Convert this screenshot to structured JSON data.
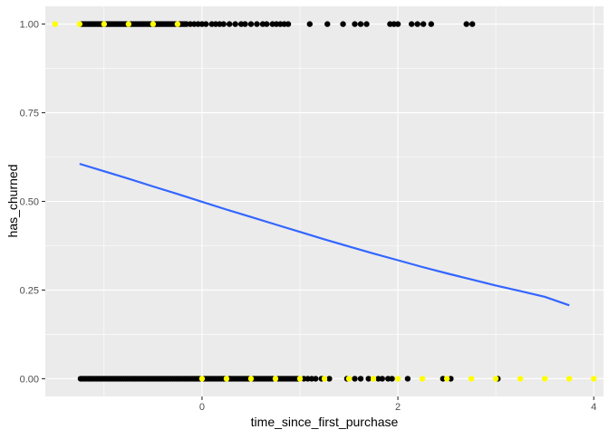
{
  "chart_data": {
    "type": "scatter",
    "title": "",
    "xlabel": "time_since_first_purchase",
    "ylabel": "has_churned",
    "xlim": [
      -1.6,
      4.1
    ],
    "ylim": [
      -0.05,
      1.05
    ],
    "x_ticks": [
      0,
      2,
      4
    ],
    "x_tick_labels": [
      "0",
      "2",
      "4"
    ],
    "x_minor_ticks": [
      -1,
      1,
      3
    ],
    "y_ticks": [
      0,
      0.25,
      0.5,
      0.75,
      1
    ],
    "y_tick_labels": [
      "0.00",
      "0.25",
      "0.50",
      "0.75",
      "1.00"
    ],
    "y_minor_ticks": [
      0.125,
      0.375,
      0.625,
      0.875
    ],
    "grid": true,
    "legend": "none",
    "colors": {
      "panel_background": "#ebebeb",
      "grid": "#ffffff",
      "observed_points": "#000000",
      "highlight_points": "#ffff00",
      "fit_line": "#3366ff"
    },
    "series": [
      {
        "type": "scatter",
        "color": "#000000",
        "points": [
          [
            -1.24,
            1
          ],
          [
            -1.22,
            1
          ],
          [
            -1.2,
            1
          ],
          [
            -1.18,
            1
          ],
          [
            -1.16,
            1
          ],
          [
            -1.14,
            1
          ],
          [
            -1.12,
            1
          ],
          [
            -1.1,
            1
          ],
          [
            -1.08,
            1
          ],
          [
            -1.06,
            1
          ],
          [
            -1.04,
            1
          ],
          [
            -1.02,
            1
          ],
          [
            -1.0,
            1
          ],
          [
            -0.98,
            1
          ],
          [
            -0.96,
            1
          ],
          [
            -0.94,
            1
          ],
          [
            -0.92,
            1
          ],
          [
            -0.9,
            1
          ],
          [
            -0.88,
            1
          ],
          [
            -0.86,
            1
          ],
          [
            -0.84,
            1
          ],
          [
            -0.82,
            1
          ],
          [
            -0.8,
            1
          ],
          [
            -0.78,
            1
          ],
          [
            -0.76,
            1
          ],
          [
            -0.74,
            1
          ],
          [
            -0.72,
            1
          ],
          [
            -0.7,
            1
          ],
          [
            -0.68,
            1
          ],
          [
            -0.66,
            1
          ],
          [
            -0.64,
            1
          ],
          [
            -0.62,
            1
          ],
          [
            -0.6,
            1
          ],
          [
            -0.58,
            1
          ],
          [
            -0.56,
            1
          ],
          [
            -0.54,
            1
          ],
          [
            -0.52,
            1
          ],
          [
            -0.5,
            1
          ],
          [
            -0.48,
            1
          ],
          [
            -0.46,
            1
          ],
          [
            -0.44,
            1
          ],
          [
            -0.42,
            1
          ],
          [
            -0.4,
            1
          ],
          [
            -0.38,
            1
          ],
          [
            -0.36,
            1
          ],
          [
            -0.34,
            1
          ],
          [
            -0.32,
            1
          ],
          [
            -0.3,
            1
          ],
          [
            -0.28,
            1
          ],
          [
            -0.26,
            1
          ],
          [
            -0.24,
            1
          ],
          [
            -0.22,
            1
          ],
          [
            -0.2,
            1
          ],
          [
            -0.18,
            1
          ],
          [
            -0.16,
            1
          ],
          [
            -0.12,
            1
          ],
          [
            -0.08,
            1
          ],
          [
            -0.04,
            1
          ],
          [
            0.0,
            1
          ],
          [
            0.04,
            1
          ],
          [
            0.1,
            1
          ],
          [
            0.14,
            1
          ],
          [
            0.18,
            1
          ],
          [
            0.22,
            1
          ],
          [
            0.28,
            1
          ],
          [
            0.34,
            1
          ],
          [
            0.4,
            1
          ],
          [
            0.44,
            1
          ],
          [
            0.5,
            1
          ],
          [
            0.56,
            1
          ],
          [
            0.62,
            1
          ],
          [
            0.66,
            1
          ],
          [
            0.72,
            1
          ],
          [
            0.76,
            1
          ],
          [
            0.8,
            1
          ],
          [
            0.84,
            1
          ],
          [
            0.88,
            1
          ],
          [
            1.1,
            1
          ],
          [
            1.28,
            1
          ],
          [
            1.44,
            1
          ],
          [
            1.56,
            1
          ],
          [
            1.62,
            1
          ],
          [
            1.68,
            1
          ],
          [
            1.92,
            1
          ],
          [
            1.96,
            1
          ],
          [
            2.0,
            1
          ],
          [
            2.14,
            1
          ],
          [
            2.2,
            1
          ],
          [
            2.26,
            1
          ],
          [
            2.34,
            1
          ],
          [
            2.7,
            1
          ],
          [
            2.76,
            1
          ],
          [
            -1.24,
            0
          ],
          [
            -1.22,
            0
          ],
          [
            -1.2,
            0
          ],
          [
            -1.18,
            0
          ],
          [
            -1.16,
            0
          ],
          [
            -1.14,
            0
          ],
          [
            -1.12,
            0
          ],
          [
            -1.1,
            0
          ],
          [
            -1.08,
            0
          ],
          [
            -1.06,
            0
          ],
          [
            -1.04,
            0
          ],
          [
            -1.02,
            0
          ],
          [
            -1.0,
            0
          ],
          [
            -0.98,
            0
          ],
          [
            -0.96,
            0
          ],
          [
            -0.94,
            0
          ],
          [
            -0.92,
            0
          ],
          [
            -0.9,
            0
          ],
          [
            -0.88,
            0
          ],
          [
            -0.86,
            0
          ],
          [
            -0.84,
            0
          ],
          [
            -0.82,
            0
          ],
          [
            -0.8,
            0
          ],
          [
            -0.78,
            0
          ],
          [
            -0.76,
            0
          ],
          [
            -0.74,
            0
          ],
          [
            -0.72,
            0
          ],
          [
            -0.7,
            0
          ],
          [
            -0.68,
            0
          ],
          [
            -0.66,
            0
          ],
          [
            -0.64,
            0
          ],
          [
            -0.62,
            0
          ],
          [
            -0.6,
            0
          ],
          [
            -0.58,
            0
          ],
          [
            -0.56,
            0
          ],
          [
            -0.54,
            0
          ],
          [
            -0.52,
            0
          ],
          [
            -0.5,
            0
          ],
          [
            -0.48,
            0
          ],
          [
            -0.46,
            0
          ],
          [
            -0.44,
            0
          ],
          [
            -0.42,
            0
          ],
          [
            -0.4,
            0
          ],
          [
            -0.38,
            0
          ],
          [
            -0.36,
            0
          ],
          [
            -0.34,
            0
          ],
          [
            -0.32,
            0
          ],
          [
            -0.3,
            0
          ],
          [
            -0.28,
            0
          ],
          [
            -0.26,
            0
          ],
          [
            -0.24,
            0
          ],
          [
            -0.22,
            0
          ],
          [
            -0.2,
            0
          ],
          [
            -0.18,
            0
          ],
          [
            -0.16,
            0
          ],
          [
            -0.14,
            0
          ],
          [
            -0.12,
            0
          ],
          [
            -0.1,
            0
          ],
          [
            -0.08,
            0
          ],
          [
            -0.06,
            0
          ],
          [
            -0.04,
            0
          ],
          [
            -0.02,
            0
          ],
          [
            0.02,
            0
          ],
          [
            0.04,
            0
          ],
          [
            0.06,
            0
          ],
          [
            0.08,
            0
          ],
          [
            0.1,
            0
          ],
          [
            0.12,
            0
          ],
          [
            0.14,
            0
          ],
          [
            0.16,
            0
          ],
          [
            0.18,
            0
          ],
          [
            0.2,
            0
          ],
          [
            0.22,
            0
          ],
          [
            0.24,
            0
          ],
          [
            0.28,
            0
          ],
          [
            0.3,
            0
          ],
          [
            0.32,
            0
          ],
          [
            0.34,
            0
          ],
          [
            0.36,
            0
          ],
          [
            0.38,
            0
          ],
          [
            0.4,
            0
          ],
          [
            0.42,
            0
          ],
          [
            0.44,
            0
          ],
          [
            0.46,
            0
          ],
          [
            0.48,
            0
          ],
          [
            0.52,
            0
          ],
          [
            0.54,
            0
          ],
          [
            0.56,
            0
          ],
          [
            0.58,
            0
          ],
          [
            0.6,
            0
          ],
          [
            0.62,
            0
          ],
          [
            0.64,
            0
          ],
          [
            0.66,
            0
          ],
          [
            0.68,
            0
          ],
          [
            0.7,
            0
          ],
          [
            0.72,
            0
          ],
          [
            0.78,
            0
          ],
          [
            0.8,
            0
          ],
          [
            0.82,
            0
          ],
          [
            0.84,
            0
          ],
          [
            0.86,
            0
          ],
          [
            0.88,
            0
          ],
          [
            0.9,
            0
          ],
          [
            0.92,
            0
          ],
          [
            0.94,
            0
          ],
          [
            0.96,
            0
          ],
          [
            0.98,
            0
          ],
          [
            1.04,
            0
          ],
          [
            1.08,
            0
          ],
          [
            1.12,
            0
          ],
          [
            1.16,
            0
          ],
          [
            1.22,
            0
          ],
          [
            1.3,
            0
          ],
          [
            1.48,
            0
          ],
          [
            1.56,
            0
          ],
          [
            1.62,
            0
          ],
          [
            1.7,
            0
          ],
          [
            1.8,
            0
          ],
          [
            1.84,
            0
          ],
          [
            1.9,
            0
          ],
          [
            1.94,
            0
          ],
          [
            2.1,
            0
          ],
          [
            2.46,
            0
          ],
          [
            2.54,
            0
          ],
          [
            3.02,
            0
          ]
        ]
      },
      {
        "type": "scatter",
        "color": "#ffff00",
        "points": [
          [
            -1.5,
            1
          ],
          [
            -1.25,
            1
          ],
          [
            -1.0,
            1
          ],
          [
            -0.75,
            1
          ],
          [
            -0.5,
            1
          ],
          [
            -0.25,
            1
          ],
          [
            0.0,
            0
          ],
          [
            0.25,
            0
          ],
          [
            0.5,
            0
          ],
          [
            0.75,
            0
          ],
          [
            1.0,
            0
          ],
          [
            1.25,
            0
          ],
          [
            1.5,
            0
          ],
          [
            1.75,
            0
          ],
          [
            2.0,
            0
          ],
          [
            2.25,
            0
          ],
          [
            2.5,
            0
          ],
          [
            2.75,
            0
          ],
          [
            3.0,
            0
          ],
          [
            3.25,
            0
          ],
          [
            3.5,
            0
          ],
          [
            3.75,
            0
          ],
          [
            4.0,
            0
          ]
        ]
      },
      {
        "type": "line",
        "color": "#3366ff",
        "x": [
          -1.25,
          -1.0,
          -0.75,
          -0.5,
          -0.25,
          0.0,
          0.25,
          0.5,
          0.75,
          1.0,
          1.25,
          1.5,
          1.75,
          2.0,
          2.25,
          2.5,
          2.75,
          3.0,
          3.25,
          3.5,
          3.75
        ],
        "y": [
          0.606,
          0.585,
          0.564,
          0.542,
          0.521,
          0.499,
          0.477,
          0.456,
          0.435,
          0.414,
          0.393,
          0.373,
          0.353,
          0.334,
          0.315,
          0.297,
          0.28,
          0.263,
          0.247,
          0.231,
          0.207
        ]
      }
    ]
  }
}
